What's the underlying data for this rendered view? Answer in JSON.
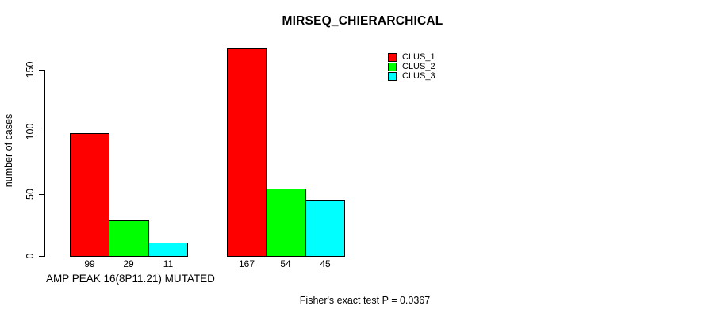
{
  "chart_data": {
    "type": "bar",
    "title": "MIRSEQ_CHIERARCHICAL",
    "ylabel": "number of cases",
    "xlabel": "",
    "ylim": [
      0,
      150
    ],
    "yticks": [
      0,
      50,
      100,
      150
    ],
    "grid": false,
    "legend_position": "top-right",
    "categories": [
      "AMP PEAK 16(8P11.21) MUTATED",
      ""
    ],
    "series": [
      {
        "name": "CLUS_1",
        "color": "#ff0000",
        "values": [
          99,
          167
        ]
      },
      {
        "name": "CLUS_2",
        "color": "#00ff00",
        "values": [
          29,
          54
        ]
      },
      {
        "name": "CLUS_3",
        "color": "#00ffff",
        "values": [
          11,
          45
        ]
      }
    ],
    "bar_value_labels": [
      [
        99,
        29,
        11
      ],
      [
        167,
        54,
        45
      ]
    ],
    "footnote": "Fisher's exact test P = 0.0367"
  }
}
